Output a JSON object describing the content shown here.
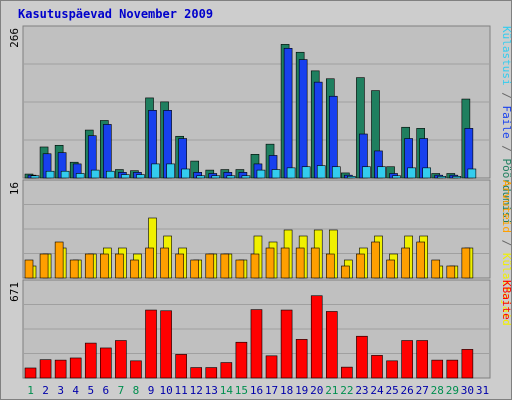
{
  "chart_data": {
    "type": "bar",
    "title": "Kasutuspäevad November 2009",
    "days": [
      "1",
      "2",
      "3",
      "4",
      "5",
      "6",
      "7",
      "8",
      "9",
      "10",
      "11",
      "12",
      "13",
      "14",
      "15",
      "16",
      "17",
      "18",
      "19",
      "20",
      "21",
      "22",
      "23",
      "24",
      "25",
      "26",
      "27",
      "28",
      "29",
      "30",
      "31"
    ],
    "weekend_days": [
      "1",
      "7",
      "8",
      "14",
      "15",
      "21",
      "22",
      "28",
      "29"
    ],
    "panels": [
      {
        "id": "top",
        "ymax_label": "266",
        "ymax": 266,
        "series": [
          {
            "name": "Pöördumisi",
            "color": "#1f7f5f",
            "values": [
              7,
              55,
              58,
              28,
              85,
              102,
              15,
              13,
              142,
              135,
              74,
              30,
              14,
              15,
              15,
              42,
              60,
              237,
              223,
              190,
              176,
              9,
              178,
              155,
              20,
              90,
              88,
              8,
              8,
              140,
              0
            ]
          },
          {
            "name": "Faile",
            "color": "#1740ee",
            "values": [
              5,
              43,
              45,
              25,
              75,
              95,
              10,
              10,
              120,
              120,
              70,
              10,
              8,
              10,
              10,
              25,
              40,
              230,
              210,
              170,
              145,
              5,
              78,
              48,
              8,
              70,
              70,
              5,
              5,
              88,
              0
            ]
          },
          {
            "name": "Külastusi",
            "color": "#33ccee",
            "values": [
              4,
              12,
              12,
              8,
              14,
              12,
              6,
              6,
              25,
              25,
              16,
              4,
              4,
              4,
              4,
              14,
              15,
              18,
              20,
              22,
              20,
              3,
              20,
              20,
              4,
              18,
              18,
              3,
              3,
              16,
              0
            ]
          }
        ]
      },
      {
        "id": "middle",
        "ymax_label": "16",
        "ymax": 16,
        "series": [
          {
            "name": "Külastajaid",
            "color": "#f0f000",
            "values": [
              2,
              4,
              5,
              3,
              4,
              5,
              5,
              4,
              10,
              7,
              5,
              3,
              4,
              4,
              3,
              7,
              6,
              8,
              7,
              8,
              8,
              3,
              5,
              7,
              4,
              7,
              7,
              2,
              2,
              5,
              0
            ]
          },
          {
            "name": "Arvuteid",
            "color": "#ff9f00",
            "values": [
              3,
              4,
              6,
              3,
              4,
              4,
              4,
              3,
              5,
              5,
              4,
              3,
              4,
              4,
              3,
              4,
              5,
              5,
              5,
              5,
              4,
              2,
              4,
              6,
              3,
              5,
              6,
              3,
              2,
              5,
              0
            ]
          }
        ]
      },
      {
        "id": "bottom",
        "ymax_label": "671",
        "ymax": 671,
        "series": [
          {
            "name": "KBaite",
            "color": "#ff0000",
            "values": [
              70,
              128,
              125,
              140,
              244,
              210,
              262,
              120,
              475,
              470,
              165,
              73,
              73,
              108,
              250,
              478,
              155,
              475,
              270,
              575,
              465,
              76,
              292,
              158,
              120,
              262,
              262,
              125,
              125,
              200,
              0
            ]
          }
        ]
      }
    ],
    "right_legends": {
      "top": [
        "Pöördumisi",
        "Faile",
        "Külastusi"
      ],
      "middle": [
        "Külastajaid",
        "Arvuteid"
      ],
      "bottom": [
        "KBaite"
      ]
    },
    "colors": {
      "background": "#cdcdcd",
      "plot": "#c0c0c0",
      "title": "#0000cc",
      "weekday_label": "#0000aa",
      "weekend_label": "#008f4f",
      "separator": "#666666"
    }
  }
}
